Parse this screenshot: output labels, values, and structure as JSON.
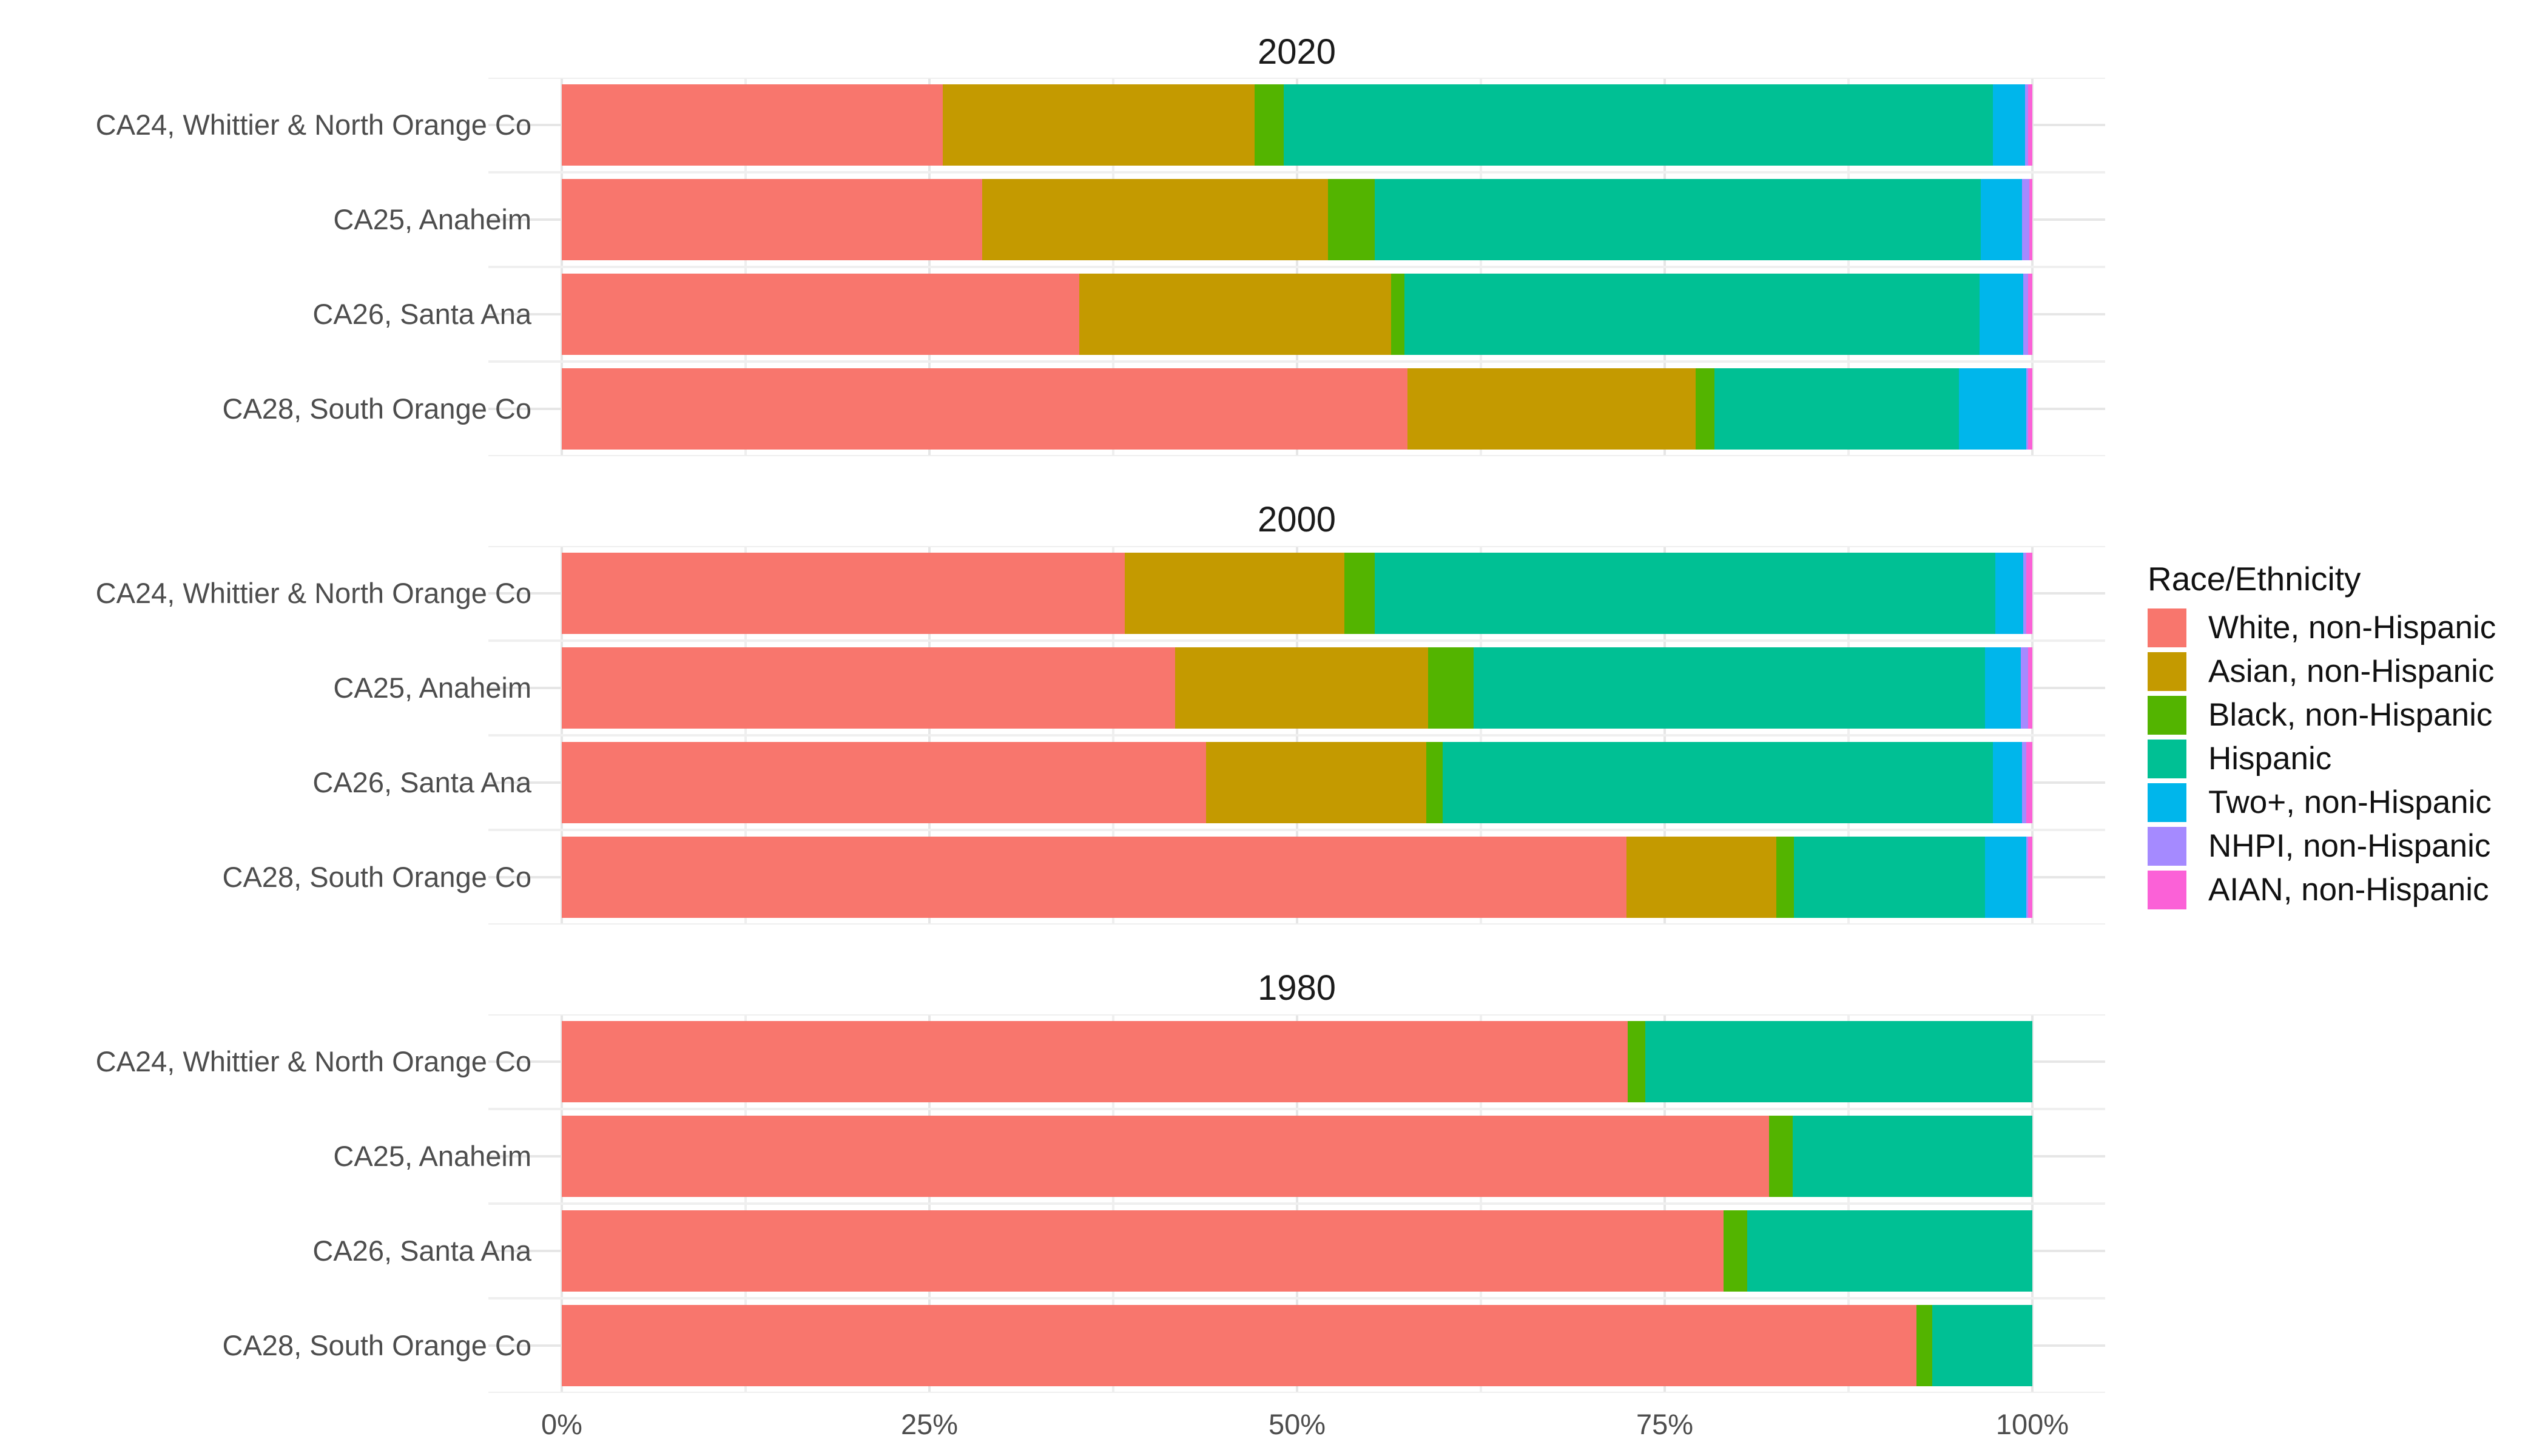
{
  "chart_data": {
    "type": "bar",
    "orientation": "horizontal",
    "stacking": "fill",
    "x_axis": {
      "ticks": [
        "0%",
        "25%",
        "50%",
        "75%",
        "100%"
      ],
      "range": [
        0,
        100
      ],
      "minor_step_pct": 12.5
    },
    "legend_title": "Race/Ethnicity",
    "grid": "on",
    "legend_position": "right",
    "series": [
      {
        "name": "White, non-Hispanic",
        "color": "#F8766D"
      },
      {
        "name": "Asian, non-Hispanic",
        "color": "#C49A00"
      },
      {
        "name": "Black, non-Hispanic",
        "color": "#53B400"
      },
      {
        "name": "Hispanic",
        "color": "#00C094"
      },
      {
        "name": "Two+, non-Hispanic",
        "color": "#00B6EB"
      },
      {
        "name": "NHPI, non-Hispanic",
        "color": "#A58AFF"
      },
      {
        "name": "AIAN, non-Hispanic",
        "color": "#FB61D7"
      }
    ],
    "facets": [
      {
        "title": "2020",
        "rows": [
          {
            "label": "CA24, Whittier & North Orange Co",
            "values": [
              25.9,
              21.2,
              2.0,
              48.2,
              2.2,
              0.2,
              0.3
            ]
          },
          {
            "label": "CA25, Anaheim",
            "values": [
              28.6,
              23.5,
              3.2,
              41.2,
              2.8,
              0.5,
              0.2
            ]
          },
          {
            "label": "CA26, Santa Ana",
            "values": [
              35.2,
              21.2,
              0.9,
              39.1,
              3.0,
              0.3,
              0.3
            ]
          },
          {
            "label": "CA28, South Orange Co",
            "values": [
              57.5,
              19.6,
              1.3,
              16.6,
              4.6,
              0.1,
              0.3
            ]
          }
        ]
      },
      {
        "title": "2000",
        "rows": [
          {
            "label": "CA24, Whittier & North Orange Co",
            "values": [
              38.3,
              14.9,
              2.1,
              42.2,
              1.9,
              0.2,
              0.4
            ]
          },
          {
            "label": "CA25, Anaheim",
            "values": [
              41.7,
              17.2,
              3.1,
              34.8,
              2.4,
              0.5,
              0.3
            ]
          },
          {
            "label": "CA26, Santa Ana",
            "values": [
              43.8,
              15.0,
              1.1,
              37.4,
              2.0,
              0.3,
              0.4
            ]
          },
          {
            "label": "CA28, South Orange Co",
            "values": [
              72.4,
              10.2,
              1.2,
              13.0,
              2.8,
              0.1,
              0.3
            ]
          }
        ]
      },
      {
        "title": "1980",
        "rows": [
          {
            "label": "CA24, Whittier & North Orange Co",
            "values": [
              72.5,
              0,
              1.2,
              26.3,
              0,
              0,
              0
            ]
          },
          {
            "label": "CA25, Anaheim",
            "values": [
              82.1,
              0,
              1.6,
              16.3,
              0,
              0,
              0
            ]
          },
          {
            "label": "CA26, Santa Ana",
            "values": [
              79.0,
              0,
              1.6,
              19.4,
              0,
              0,
              0
            ]
          },
          {
            "label": "CA28, South Orange Co",
            "values": [
              92.1,
              0,
              1.1,
              6.8,
              0,
              0,
              0
            ]
          }
        ]
      }
    ]
  }
}
